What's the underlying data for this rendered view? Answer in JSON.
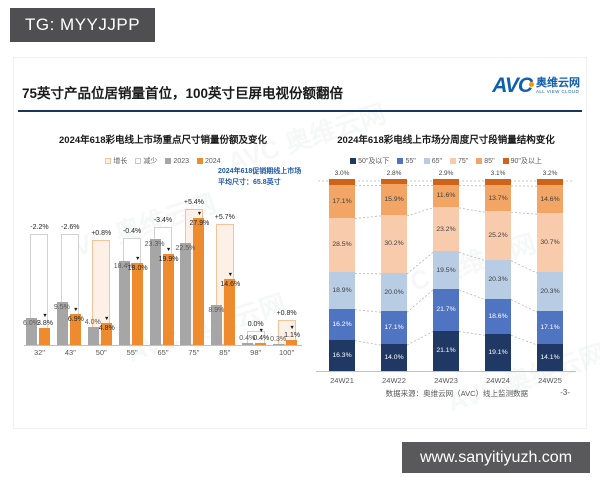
{
  "page": {
    "tag": "TG: MYYJJPP",
    "url_watermark": "www.sanyitiyuzh.com",
    "watermark_text": "AVC 奥维云网",
    "footer": {
      "source": "数据来源：奥维云网（AVC）线上监测数据",
      "page_no": "-3-"
    }
  },
  "header": {
    "title": "75英寸产品位居销量首位，100英寸巨屏电视份额翻倍",
    "logo": {
      "abbr": "AVC",
      "cn": "奥维云网",
      "en": "ALL VIEW CLOUD"
    }
  },
  "colors": {
    "navy_rule": "#17375e",
    "bar_2023": "#a6a6a6",
    "bar_2024": "#ee8b2e",
    "increase_fill": "#fdf0e6",
    "increase_border": "#f3c49a",
    "decrease_fill": "#ffffff",
    "decrease_border": "#d2d2d2",
    "annotation_blue": "#1f5aa8"
  },
  "chart_data": [
    {
      "type": "bar",
      "title": "2024年618彩电线上市场重点尺寸销量份额及变化",
      "legend_items": [
        {
          "label": "增长",
          "fill": "#fdf0e6",
          "border": "#f3c49a"
        },
        {
          "label": "减少",
          "fill": "#ffffff",
          "border": "#c9c9c9"
        },
        {
          "label": "2023",
          "fill": "#a6a6a6",
          "border": "#a6a6a6"
        },
        {
          "label": "2024",
          "fill": "#ee8b2e",
          "border": "#ee8b2e"
        }
      ],
      "annotation": "2024年618促销期线上市场\n平均尺寸：65.8英寸",
      "categories": [
        "32\"",
        "43\"",
        "50\"",
        "55\"",
        "65\"",
        "75\"",
        "85\"",
        "98\"",
        "100\""
      ],
      "series": [
        {
          "name": "2023",
          "values": [
            6.0,
            9.5,
            4.0,
            18.4,
            23.3,
            22.5,
            8.9,
            0.4,
            0.3
          ]
        },
        {
          "name": "2024",
          "values": [
            3.8,
            6.9,
            4.8,
            18.0,
            19.9,
            27.9,
            14.6,
            0.4,
            1.1
          ]
        }
      ],
      "change": [
        -2.2,
        -2.6,
        0.8,
        -0.4,
        -3.4,
        5.4,
        5.7,
        0.0,
        0.8
      ],
      "change_labels": [
        "-2.2%",
        "-2.6%",
        "+0.8%",
        "-0.4%",
        "-3.4%",
        "+5.4%",
        "+5.7%",
        "0.0%",
        "+0.8%"
      ],
      "change_col_pct": [
        24.5,
        24.5,
        23,
        23.5,
        26,
        30,
        26.5,
        3,
        5.5
      ],
      "unit": "%",
      "ylim": [
        0,
        32
      ],
      "grid": false,
      "legend_position": "top"
    },
    {
      "type": "stacked-bar",
      "title": "2024年618彩电线上市场分周度尺寸段销量结构变化",
      "categories": [
        "24W21",
        "24W22",
        "24W23",
        "24W24",
        "24W25"
      ],
      "series": [
        {
          "name": "50\"及以下",
          "color": "#1f3864",
          "label_color": "#ffffff",
          "values": [
            16.3,
            14.0,
            21.1,
            19.1,
            14.1
          ]
        },
        {
          "name": "55\"",
          "color": "#4f74c2",
          "label_color": "#ffffff",
          "values": [
            16.2,
            17.1,
            21.7,
            18.6,
            17.1
          ]
        },
        {
          "name": "65\"",
          "color": "#b8cce4",
          "label_color": "#404040",
          "values": [
            18.9,
            20.0,
            19.5,
            20.3,
            20.3
          ]
        },
        {
          "name": "75\"",
          "color": "#f8cbad",
          "label_color": "#404040",
          "values": [
            28.5,
            30.2,
            23.2,
            25.2,
            30.7
          ]
        },
        {
          "name": "85\"",
          "color": "#f2a564",
          "label_color": "#404040",
          "values": [
            17.1,
            15.9,
            11.6,
            13.7,
            14.6
          ]
        },
        {
          "name": "90\"及以上",
          "color": "#cf6418",
          "label_color": "#404040",
          "values": [
            3.0,
            2.8,
            2.9,
            3.1,
            3.2
          ]
        }
      ],
      "unit": "%",
      "ylim": [
        0,
        100
      ],
      "grid": "dashed-connectors",
      "legend_position": "top"
    }
  ]
}
